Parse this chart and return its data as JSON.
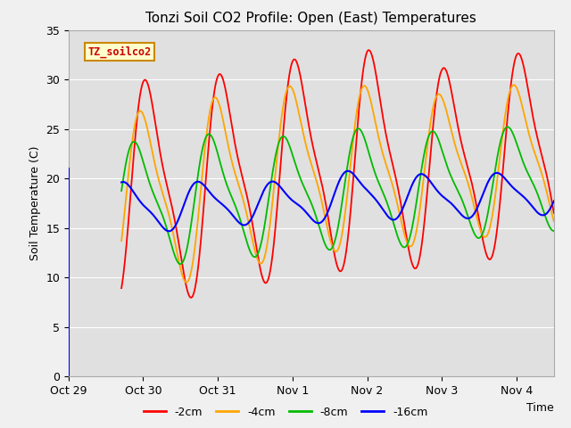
{
  "title": "Tonzi Soil CO2 Profile: Open (East) Temperatures",
  "xlabel": "Time",
  "ylabel": "Soil Temperature (C)",
  "ylim": [
    0,
    35
  ],
  "xlim_days": 6.5,
  "series_colors": [
    "#ff0000",
    "#ffa500",
    "#00bb00",
    "#0000ff"
  ],
  "series_labels": [
    "-2cm",
    "-4cm",
    "-8cm",
    "-16cm"
  ],
  "legend_label": "TZ_soilco2",
  "tick_labels": [
    "Oct 29",
    "Oct 30",
    "Oct 31",
    "Nov 1",
    "Nov 2",
    "Nov 3",
    "Nov 4"
  ],
  "tick_positions": [
    0,
    1,
    2,
    3,
    4,
    5,
    6
  ],
  "yticks": [
    0,
    5,
    10,
    15,
    20,
    25,
    30,
    35
  ],
  "bg_color": "#f0f0f0",
  "plot_bg_color": "#e0e0e0",
  "grid_color": "#ffffff"
}
